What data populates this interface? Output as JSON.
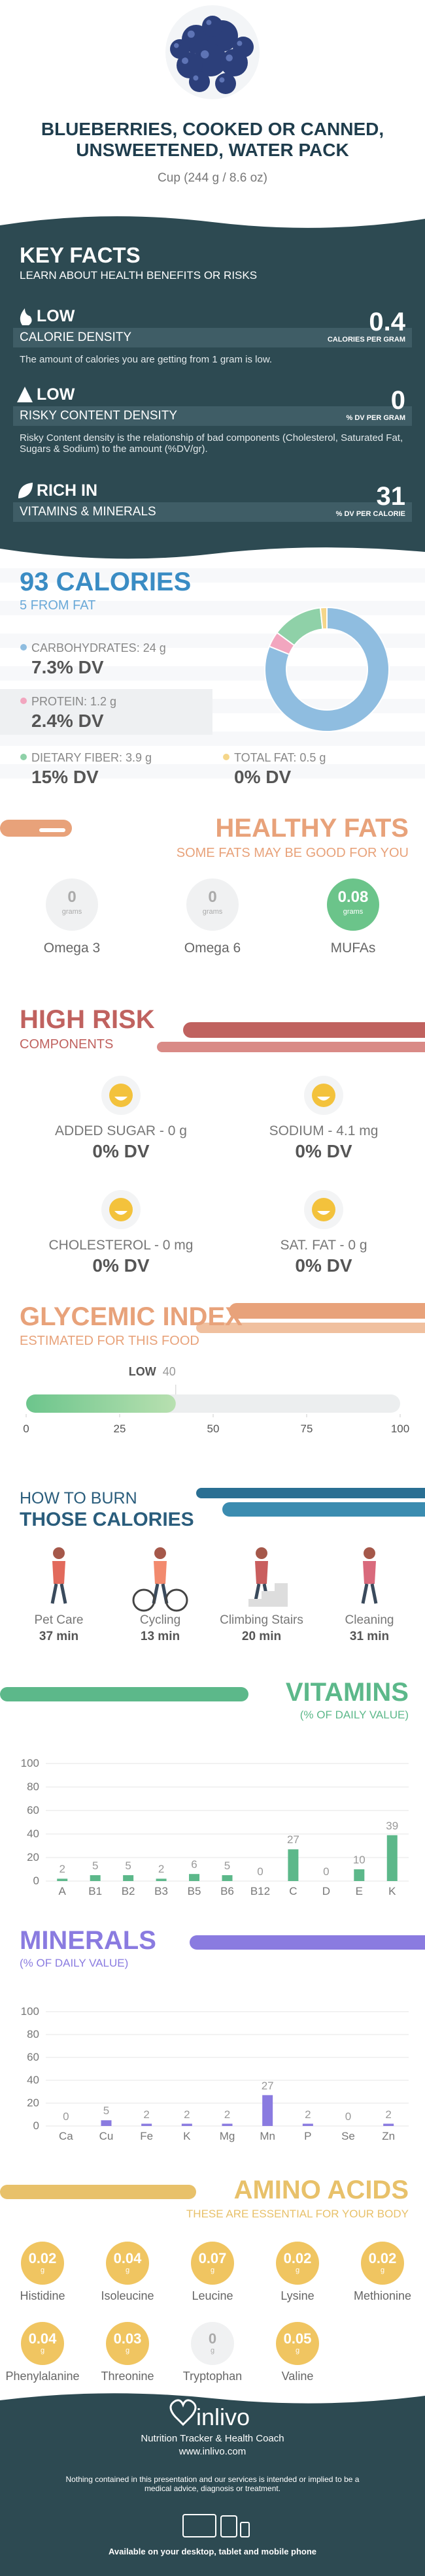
{
  "header": {
    "title": "BLUEBERRIES, COOKED OR CANNED, UNSWEETENED, WATER PACK",
    "serving": "Cup (244 g / 8.6 oz)"
  },
  "key_facts": {
    "title": "KEY FACTS",
    "subtitle": "LEARN ABOUT HEALTH BENEFITS OR RISKS",
    "items": [
      {
        "level": "LOW",
        "name": "CALORIE DENSITY",
        "value": 0.4,
        "unit": "CALORIES PER GRAM",
        "description": "The amount of calories you are getting from 1 gram is low."
      },
      {
        "level": "LOW",
        "name": "RISKY CONTENT DENSITY",
        "value": 0,
        "unit": "% DV PER GRAM",
        "description": "Risky Content density is the relationship of bad components (Cholesterol, Saturated Fat, Sugars & Sodium) to the amount (%DV/gr)."
      },
      {
        "level": "RICH IN",
        "name": "VITAMINS & MINERALS",
        "value": 31,
        "unit": "% DV PER CALORIE"
      }
    ]
  },
  "calories": {
    "title": "93 CALORIES",
    "subtitle": "5 FROM FAT",
    "items": [
      {
        "label": "CARBOHYDRATES: 24 g",
        "dv": "7.3% DV"
      },
      {
        "label": "PROTEIN: 1.2 g",
        "dv": "2.4% DV"
      },
      {
        "label": "DIETARY FIBER: 3.9 g",
        "dv": "15% DV"
      },
      {
        "label": "TOTAL FAT: 0.5 g",
        "dv": "0% DV"
      }
    ]
  },
  "healthy_fats": {
    "title": "HEALTHY FATS",
    "subtitle": "SOME FATS MAY BE GOOD FOR YOU",
    "unit": "grams",
    "items": [
      {
        "name": "Omega 3",
        "value": 0
      },
      {
        "name": "Omega 6",
        "value": 0
      },
      {
        "name": "MUFAs",
        "value": 0.08
      }
    ]
  },
  "high_risk": {
    "title": "HIGH RISK",
    "subtitle": "COMPONENTS",
    "items": [
      {
        "label": "ADDED SUGAR - 0 g",
        "dv": "0% DV"
      },
      {
        "label": "SODIUM - 4.1 mg",
        "dv": "0% DV"
      },
      {
        "label": "CHOLESTEROL - 0 mg",
        "dv": "0% DV"
      },
      {
        "label": "SAT. FAT - 0 g",
        "dv": "0% DV"
      }
    ]
  },
  "glycemic": {
    "title": "GLYCEMIC INDEX",
    "subtitle": "ESTIMATED FOR THIS FOOD",
    "level": "LOW",
    "value": 40,
    "xlim": [
      0,
      100
    ],
    "xticks": [
      0,
      25,
      50,
      75,
      100
    ]
  },
  "burn": {
    "title_1": "HOW TO BURN",
    "title_2": "THOSE CALORIES",
    "activities": [
      {
        "name": "Pet Care",
        "time": "37 min"
      },
      {
        "name": "Cycling",
        "time": "13 min"
      },
      {
        "name": "Climbing Stairs",
        "time": "20 min"
      },
      {
        "name": "Cleaning",
        "time": "31 min"
      }
    ]
  },
  "chart_data": [
    {
      "type": "pie",
      "values": [
        24,
        1.2,
        3.9,
        0.5
      ],
      "colors": [
        "#8fbde0",
        "#f2a6bf",
        "#8fd1a8",
        "#f5d68a"
      ]
    },
    {
      "type": "bar",
      "title": "VITAMINS",
      "subtitle": "(% OF DAILY VALUE)",
      "categories": [
        "A",
        "B1",
        "B2",
        "B3",
        "B5",
        "B6",
        "B12",
        "C",
        "D",
        "E",
        "K"
      ],
      "values": [
        2,
        5,
        5,
        2,
        6,
        5,
        0,
        27,
        0,
        10,
        39
      ],
      "color": "#5cb88a",
      "ylim": [
        0,
        100
      ],
      "yticks": [
        0,
        20,
        40,
        60,
        80,
        100
      ],
      "grid": true
    },
    {
      "type": "bar",
      "title": "MINERALS",
      "subtitle": "(% OF DAILY VALUE)",
      "categories": [
        "Ca",
        "Cu",
        "Fe",
        "K",
        "Mg",
        "Mn",
        "P",
        "Se",
        "Zn"
      ],
      "values": [
        0,
        5,
        2,
        2,
        2,
        27,
        2,
        0,
        2
      ],
      "color": "#8a7be0",
      "ylim": [
        0,
        100
      ],
      "yticks": [
        0,
        20,
        40,
        60,
        80,
        100
      ],
      "grid": true
    }
  ],
  "amino_acids": {
    "title": "AMINO ACIDS",
    "subtitle": "THESE ARE ESSENTIAL FOR YOUR BODY",
    "unit": "g",
    "items": [
      {
        "name": "Histidine",
        "value": 0.02
      },
      {
        "name": "Isoleucine",
        "value": 0.04
      },
      {
        "name": "Leucine",
        "value": 0.07
      },
      {
        "name": "Lysine",
        "value": 0.02
      },
      {
        "name": "Methionine",
        "value": 0.02
      },
      {
        "name": "Phenylalanine",
        "value": 0.04
      },
      {
        "name": "Threonine",
        "value": 0.03
      },
      {
        "name": "Tryptophan",
        "value": 0
      },
      {
        "name": "Valine",
        "value": 0.05
      }
    ]
  },
  "footer": {
    "brand": "inlivo",
    "tagline": "Nutrition Tracker & Health Coach",
    "url": "www.inlivo.com",
    "disclaimer": "Nothing contained in this presentation and our services is intended or implied to be a medical advice, diagnosis or treatment.",
    "availability": "Available on your desktop, tablet and mobile phone"
  }
}
